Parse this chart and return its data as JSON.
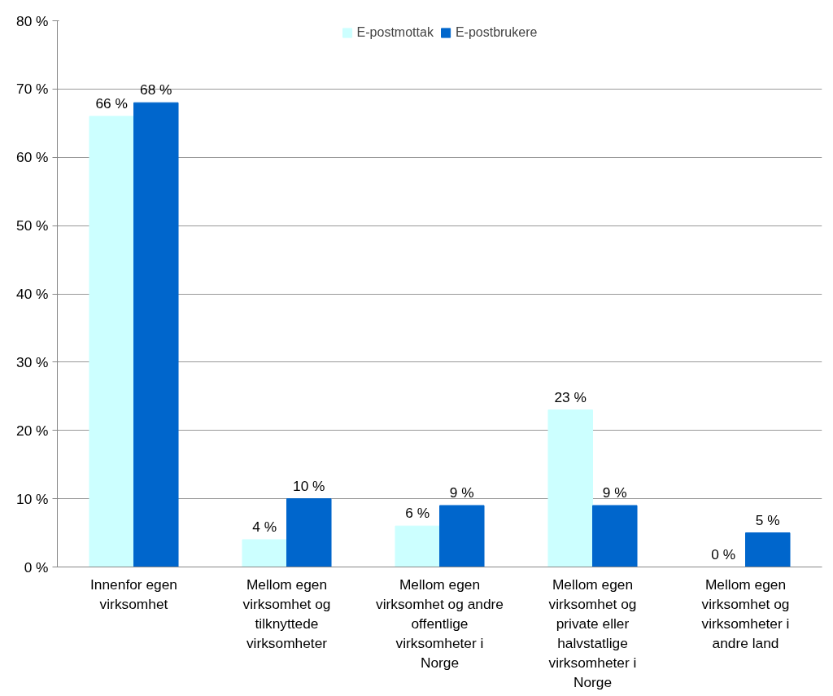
{
  "chart_data": {
    "type": "bar",
    "categories": [
      "Innenfor egen virksomhet",
      "Mellom egen virksomhet og tilknyttede virksomheter",
      "Mellom egen virksomhet og andre offentlige virksomheter i Norge",
      "Mellom egen virksomhet og private eller halvstatlige virksomheter i Norge",
      "Mellom egen virksomhet og virksomheter i andre land"
    ],
    "series": [
      {
        "name": "E-postmottak",
        "color": "#ccffff",
        "values": [
          66,
          4,
          6,
          23,
          0
        ],
        "value_labels": [
          "66 %",
          "4 %",
          "6 %",
          "23 %",
          "0 %"
        ]
      },
      {
        "name": "E-postbrukere",
        "color": "#0066cc",
        "values": [
          68,
          10,
          9,
          9,
          5
        ],
        "value_labels": [
          "68 %",
          "10 %",
          "9 %",
          "9 %",
          "5 %"
        ]
      }
    ],
    "ylim": [
      0,
      80
    ],
    "yticks": [
      {
        "value": 0,
        "label": "0 %"
      },
      {
        "value": 10,
        "label": "10 %"
      },
      {
        "value": 20,
        "label": "20 %"
      },
      {
        "value": 30,
        "label": "30 %"
      },
      {
        "value": 40,
        "label": "40 %"
      },
      {
        "value": 50,
        "label": "50 %"
      },
      {
        "value": 60,
        "label": "60 %"
      },
      {
        "value": 70,
        "label": "70 %"
      },
      {
        "value": 80,
        "label": "80 %"
      }
    ],
    "grid": "y",
    "legend": "top"
  }
}
